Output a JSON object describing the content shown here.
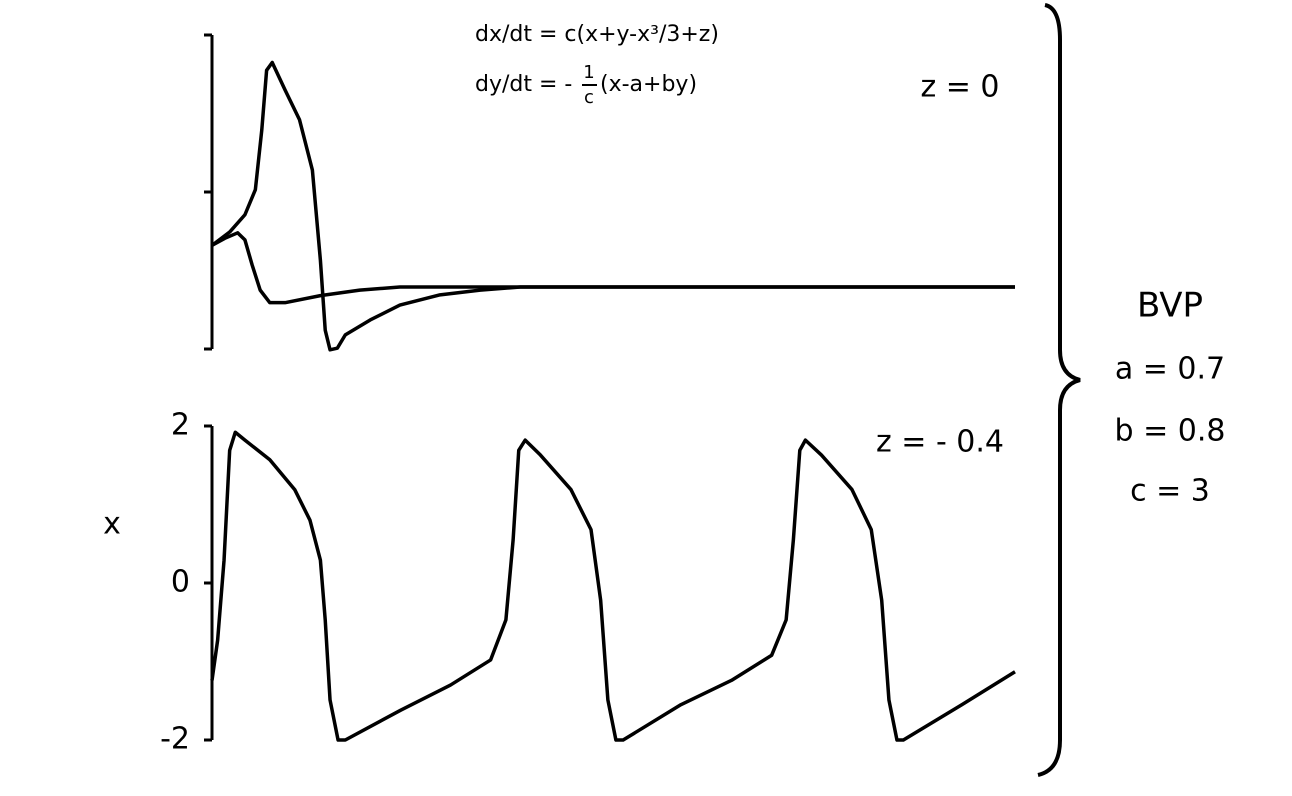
{
  "chart_data": [
    {
      "type": "line",
      "equation_1": "dx/dt = c(x+y-x³/3+z)",
      "equation_2": {
        "lhs": "dy/dt = -",
        "numerator": "1",
        "denominator": "c",
        "rhs": "(x-a+by)"
      },
      "annotation": "z = 0",
      "xlim": [
        0,
        100
      ],
      "ylim": [
        -2,
        2
      ],
      "yticks": [
        {
          "value": -2,
          "label": null
        },
        {
          "value": 0,
          "label": null
        },
        {
          "value": 2,
          "label": null
        }
      ],
      "series": [
        {
          "color": "#000000",
          "x": [
            0,
            2.2,
            4.1,
            5.4,
            6.2,
            6.8,
            7.5,
            9.1,
            10.9,
            12.5,
            13.5,
            14.1,
            14.7,
            15.6,
            16.6,
            19.7,
            23.4,
            28.4,
            33.4,
            38.4,
            48.3,
            100
          ],
          "values": [
            -0.68,
            -0.51,
            -0.29,
            0.03,
            0.79,
            1.55,
            1.65,
            1.3,
            0.92,
            0.28,
            -0.87,
            -1.76,
            -2.01,
            -1.99,
            -1.82,
            -1.63,
            -1.44,
            -1.31,
            -1.25,
            -1.21,
            -1.21,
            -1.21
          ]
        },
        {
          "color": "#000000",
          "x": [
            0,
            1.6,
            3.2,
            4.1,
            5.0,
            6.0,
            7.2,
            9.1,
            13.5,
            18.4,
            23.4,
            100
          ],
          "values": [
            -0.68,
            -0.59,
            -0.52,
            -0.61,
            -0.93,
            -1.25,
            -1.41,
            -1.41,
            -1.32,
            -1.25,
            -1.21,
            -1.21
          ]
        }
      ]
    },
    {
      "type": "line",
      "annotation": "z = - 0.4",
      "ylabel": "x",
      "xlim": [
        0,
        100
      ],
      "ylim": [
        -2,
        2
      ],
      "yticks": [
        -2,
        0,
        2
      ],
      "series": [
        {
          "color": "#000000",
          "x": [
            0,
            0.7,
            1.5,
            2.2,
            2.9,
            4.1,
            7.2,
            10.3,
            12.2,
            13.5,
            14.1,
            14.7,
            15.7,
            16.6,
            23.5,
            29.7,
            34.7,
            36.6,
            37.5,
            38.2,
            39.0,
            40.9,
            44.7,
            47.2,
            48.4,
            49.3,
            50.3,
            51.2,
            58.4,
            64.7,
            69.7,
            71.5,
            72.4,
            73.2,
            73.9,
            75.9,
            79.7,
            82.1,
            83.4,
            84.3,
            85.3,
            86.1,
            93.4,
            100
          ],
          "values": [
            -1.24,
            -0.73,
            0.29,
            1.69,
            1.92,
            1.82,
            1.57,
            1.19,
            0.8,
            0.29,
            -0.47,
            -1.49,
            -2.0,
            -2.0,
            -1.62,
            -1.3,
            -0.98,
            -0.47,
            0.55,
            1.69,
            1.82,
            1.63,
            1.19,
            0.68,
            -0.22,
            -1.49,
            -2.0,
            -2.0,
            -1.55,
            -1.24,
            -0.92,
            -0.47,
            0.55,
            1.69,
            1.82,
            1.63,
            1.19,
            0.68,
            -0.22,
            -1.49,
            -2.0,
            -2.0,
            -1.55,
            -1.13
          ]
        }
      ]
    }
  ],
  "side_labels": {
    "title": "BVP",
    "parameters": [
      "a = 0.7",
      "b = 0.8",
      "c = 3"
    ]
  }
}
